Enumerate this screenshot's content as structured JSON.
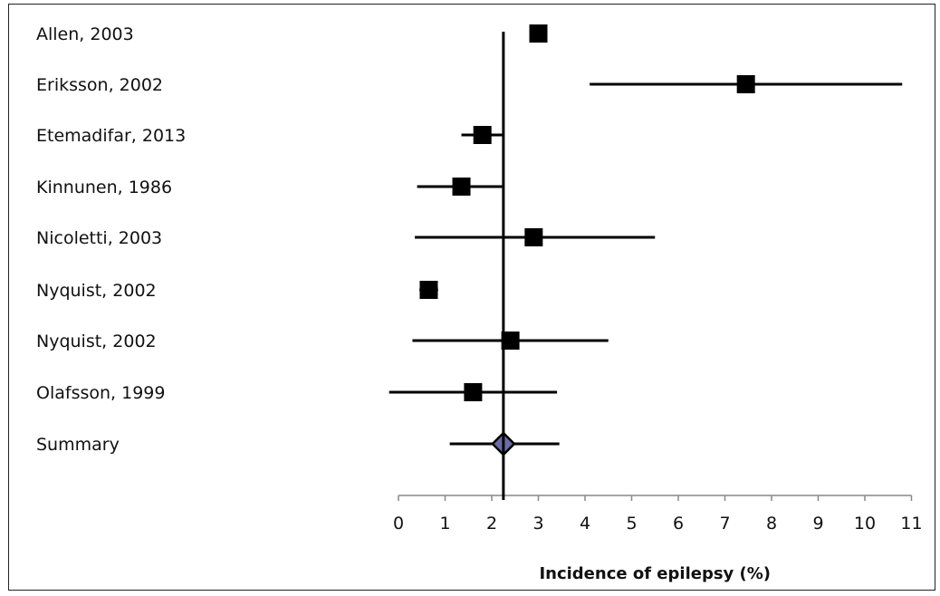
{
  "chart_data": {
    "type": "forest",
    "xlabel": "Incidence of epilepsy (%)",
    "xlim": [
      0,
      11
    ],
    "xticks": [
      0,
      1,
      2,
      3,
      4,
      5,
      6,
      7,
      8,
      9,
      10,
      11
    ],
    "reference_line": 2.25,
    "studies": [
      {
        "label": "Allen, 2003",
        "estimate": 3.0,
        "lower": 3.0,
        "upper": 3.0
      },
      {
        "label": "Eriksson, 2002",
        "estimate": 7.45,
        "lower": 4.1,
        "upper": 10.8
      },
      {
        "label": "Etemadifar, 2013",
        "estimate": 1.8,
        "lower": 1.35,
        "upper": 2.25
      },
      {
        "label": "Kinnunen, 1986",
        "estimate": 1.35,
        "lower": 0.4,
        "upper": 2.25
      },
      {
        "label": "Nicoletti, 2003",
        "estimate": 2.9,
        "lower": 0.35,
        "upper": 5.5
      },
      {
        "label": "Nyquist, 2002",
        "estimate": 0.65,
        "lower": 0.45,
        "upper": 0.85
      },
      {
        "label": "Nyquist, 2002",
        "estimate": 2.4,
        "lower": 0.3,
        "upper": 4.5
      },
      {
        "label": "Olafsson, 1999",
        "estimate": 1.6,
        "lower": -0.2,
        "upper": 3.4
      }
    ],
    "summary": {
      "label": "Summary",
      "estimate": 2.25,
      "lower": 1.1,
      "upper": 3.45
    },
    "colors": {
      "marker": "#000000",
      "summary": "#6b6ba8",
      "line": "#000000"
    }
  }
}
